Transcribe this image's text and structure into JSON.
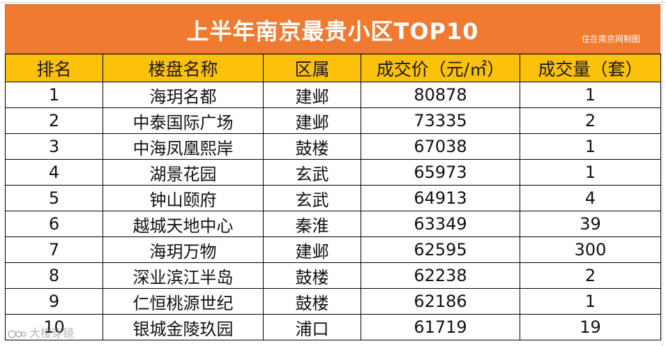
{
  "title": "上半年南京最贵小区TOP10",
  "source_note": "住在南京网制图",
  "columns": [
    "排名",
    "楼盘名称",
    "区属",
    "成交价（元/㎡）",
    "成交量（套）"
  ],
  "rows": [
    {
      "rank": "1",
      "name": "海玥名都",
      "district": "建邺",
      "price": "80878",
      "volume": "1"
    },
    {
      "rank": "2",
      "name": "中泰国际广场",
      "district": "建邺",
      "price": "73335",
      "volume": "2"
    },
    {
      "rank": "3",
      "name": "中海凤凰熙岸",
      "district": "鼓楼",
      "price": "67038",
      "volume": "1"
    },
    {
      "rank": "4",
      "name": "湖景花园",
      "district": "玄武",
      "price": "65973",
      "volume": "1"
    },
    {
      "rank": "5",
      "name": "钟山颐府",
      "district": "玄武",
      "price": "64913",
      "volume": "4"
    },
    {
      "rank": "6",
      "name": "越城天地中心",
      "district": "秦淮",
      "price": "63349",
      "volume": "39"
    },
    {
      "rank": "7",
      "name": "海玥万物",
      "district": "建邺",
      "price": "62595",
      "volume": "300"
    },
    {
      "rank": "8",
      "name": "深业滨江半岛",
      "district": "鼓楼",
      "price": "62238",
      "volume": "2"
    },
    {
      "rank": "9",
      "name": "仁恒桃源世纪",
      "district": "鼓楼",
      "price": "62186",
      "volume": "1"
    },
    {
      "rank": "10",
      "name": "银城金陵玖园",
      "district": "浦口",
      "price": "61719",
      "volume": "19"
    }
  ],
  "watermark": "大楼穿镜",
  "colors": {
    "title_bg": "#f07a2f",
    "header_bg": "#fcc10a",
    "title_text": "#ffffff"
  }
}
